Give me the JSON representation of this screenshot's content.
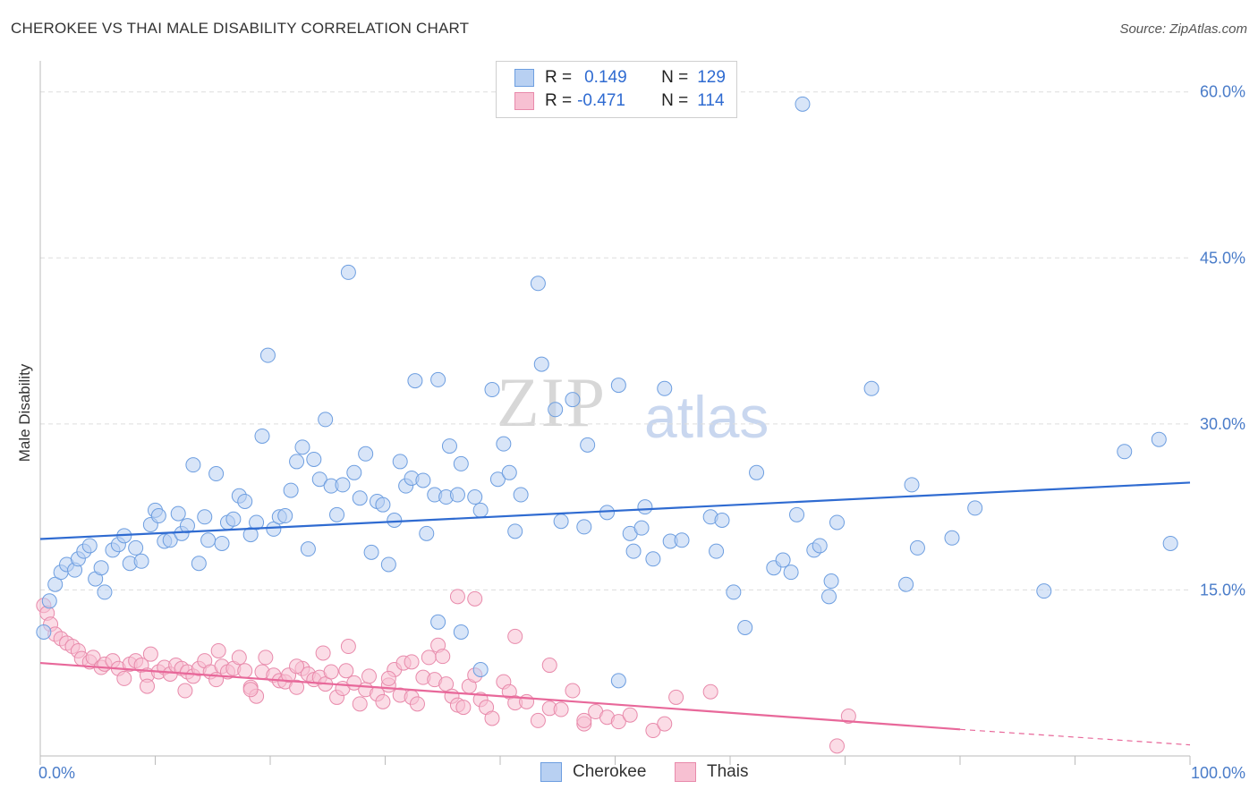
{
  "title": "CHEROKEE VS THAI MALE DISABILITY CORRELATION CHART",
  "source": "Source: ZipAtlas.com",
  "watermark": {
    "zip": "ZIP",
    "atlas": "atlas"
  },
  "legend": {
    "rows": [
      {
        "r_label": "R =",
        "r_value": "0.149",
        "n_label": "N =",
        "n_value": "129"
      },
      {
        "r_label": "R =",
        "r_value": "-0.471",
        "n_label": "N =",
        "n_value": "114"
      }
    ]
  },
  "bottom_legend": [
    "Cherokee",
    "Thais"
  ],
  "colors": {
    "cherokee_fill": "#b8d0f2",
    "cherokee_stroke": "#6d9ee0",
    "cherokee_line": "#2f6bd1",
    "thai_fill": "#f7c0d2",
    "thai_stroke": "#e88aab",
    "thai_line": "#e8689a",
    "grid": "#dddddd",
    "tick_text": "#4a7cc9"
  },
  "chart_data": {
    "type": "scatter",
    "title": "CHEROKEE VS THAI MALE DISABILITY CORRELATION CHART",
    "xlabel": "",
    "ylabel": "Male Disability",
    "xlim": [
      0,
      100
    ],
    "ylim": [
      0,
      60
    ],
    "x_tick_labels": [
      "0.0%",
      "100.0%"
    ],
    "y_ticks": [
      15,
      30,
      45,
      60
    ],
    "y_tick_labels": [
      "15.0%",
      "30.0%",
      "45.0%",
      "60.0%"
    ],
    "grid": true,
    "legend_position": "top-center",
    "series": [
      {
        "name": "Cherokee",
        "R": 0.149,
        "N": 129,
        "trend": {
          "x": [
            0,
            100
          ],
          "y": [
            19.6,
            24.7
          ]
        },
        "points": [
          [
            0.3,
            11.2
          ],
          [
            0.8,
            14
          ],
          [
            1.3,
            15.5
          ],
          [
            1.8,
            16.6
          ],
          [
            2.3,
            17.3
          ],
          [
            3.0,
            16.8
          ],
          [
            3.3,
            17.8
          ],
          [
            3.8,
            18.5
          ],
          [
            4.3,
            19
          ],
          [
            4.8,
            16
          ],
          [
            5.3,
            17
          ],
          [
            5.6,
            14.8
          ],
          [
            6.3,
            18.6
          ],
          [
            6.8,
            19.1
          ],
          [
            7.3,
            19.9
          ],
          [
            7.8,
            17.4
          ],
          [
            8.3,
            18.8
          ],
          [
            8.8,
            17.6
          ],
          [
            9.6,
            20.9
          ],
          [
            10.0,
            22.2
          ],
          [
            10.3,
            21.7
          ],
          [
            10.8,
            19.4
          ],
          [
            11.3,
            19.5
          ],
          [
            12.0,
            21.9
          ],
          [
            12.3,
            20.1
          ],
          [
            12.8,
            20.8
          ],
          [
            13.3,
            26.3
          ],
          [
            13.8,
            17.4
          ],
          [
            14.3,
            21.6
          ],
          [
            14.6,
            19.5
          ],
          [
            15.3,
            25.5
          ],
          [
            15.8,
            19.2
          ],
          [
            16.3,
            21.1
          ],
          [
            16.8,
            21.4
          ],
          [
            17.3,
            23.5
          ],
          [
            17.8,
            23.0
          ],
          [
            18.3,
            20.0
          ],
          [
            18.8,
            21.1
          ],
          [
            19.3,
            28.9
          ],
          [
            19.8,
            36.2
          ],
          [
            20.3,
            20.5
          ],
          [
            20.8,
            21.6
          ],
          [
            21.3,
            21.7
          ],
          [
            21.8,
            24.0
          ],
          [
            22.3,
            26.6
          ],
          [
            22.8,
            27.9
          ],
          [
            23.3,
            18.7
          ],
          [
            23.8,
            26.8
          ],
          [
            24.3,
            25.0
          ],
          [
            24.8,
            30.4
          ],
          [
            25.3,
            24.4
          ],
          [
            25.8,
            21.8
          ],
          [
            26.3,
            24.5
          ],
          [
            26.8,
            43.7
          ],
          [
            27.3,
            25.6
          ],
          [
            27.8,
            23.3
          ],
          [
            28.3,
            27.3
          ],
          [
            28.8,
            18.4
          ],
          [
            29.3,
            23.0
          ],
          [
            29.8,
            22.7
          ],
          [
            30.3,
            17.3
          ],
          [
            30.8,
            21.3
          ],
          [
            31.3,
            26.6
          ],
          [
            31.8,
            24.4
          ],
          [
            32.3,
            25.1
          ],
          [
            32.6,
            33.9
          ],
          [
            33.3,
            24.9
          ],
          [
            33.6,
            20.1
          ],
          [
            34.3,
            23.6
          ],
          [
            34.6,
            34.0
          ],
          [
            35.3,
            23.4
          ],
          [
            35.6,
            28.0
          ],
          [
            36.3,
            23.6
          ],
          [
            36.6,
            26.4
          ],
          [
            37.8,
            23.4
          ],
          [
            38.3,
            22.2
          ],
          [
            39.3,
            33.1
          ],
          [
            39.8,
            25.0
          ],
          [
            40.3,
            28.2
          ],
          [
            40.8,
            25.6
          ],
          [
            41.3,
            20.3
          ],
          [
            41.8,
            23.6
          ],
          [
            43.3,
            42.7
          ],
          [
            43.6,
            35.4
          ],
          [
            44.8,
            31.3
          ],
          [
            45.3,
            21.2
          ],
          [
            46.3,
            32.2
          ],
          [
            47.3,
            20.7
          ],
          [
            47.6,
            28.1
          ],
          [
            49.3,
            22.0
          ],
          [
            50.3,
            33.5
          ],
          [
            51.3,
            20.1
          ],
          [
            51.6,
            18.5
          ],
          [
            52.3,
            20.6
          ],
          [
            52.6,
            22.5
          ],
          [
            53.3,
            17.8
          ],
          [
            54.3,
            33.2
          ],
          [
            54.8,
            19.4
          ],
          [
            55.8,
            19.5
          ],
          [
            58.3,
            21.6
          ],
          [
            58.8,
            18.5
          ],
          [
            59.3,
            21.3
          ],
          [
            60.3,
            14.8
          ],
          [
            61.3,
            11.6
          ],
          [
            62.3,
            25.6
          ],
          [
            63.8,
            17.0
          ],
          [
            64.6,
            17.7
          ],
          [
            65.3,
            16.6
          ],
          [
            65.8,
            21.8
          ],
          [
            66.3,
            58.9
          ],
          [
            67.3,
            18.6
          ],
          [
            67.8,
            19.0
          ],
          [
            68.6,
            14.4
          ],
          [
            68.8,
            15.8
          ],
          [
            69.3,
            21.1
          ],
          [
            72.3,
            33.2
          ],
          [
            75.3,
            15.5
          ],
          [
            75.8,
            24.5
          ],
          [
            76.3,
            18.8
          ],
          [
            79.3,
            19.7
          ],
          [
            81.3,
            22.4
          ],
          [
            87.3,
            14.9
          ],
          [
            94.3,
            27.5
          ],
          [
            97.3,
            28.6
          ],
          [
            98.3,
            19.2
          ],
          [
            34.6,
            12.1
          ],
          [
            36.6,
            11.2
          ],
          [
            38.3,
            7.8
          ],
          [
            50.3,
            6.8
          ]
        ]
      },
      {
        "name": "Thais",
        "R": -0.471,
        "N": 114,
        "trend": {
          "x": [
            0,
            80
          ],
          "y": [
            8.4,
            2.4
          ]
        },
        "trend_dashed": {
          "x": [
            80,
            100
          ],
          "y": [
            2.4,
            1.0
          ]
        },
        "points": [
          [
            0.3,
            13.6
          ],
          [
            0.6,
            12.9
          ],
          [
            0.9,
            11.9
          ],
          [
            1.3,
            11.0
          ],
          [
            1.8,
            10.6
          ],
          [
            2.3,
            10.2
          ],
          [
            2.8,
            9.9
          ],
          [
            3.3,
            9.5
          ],
          [
            3.6,
            8.8
          ],
          [
            4.3,
            8.5
          ],
          [
            4.6,
            8.9
          ],
          [
            5.3,
            8.0
          ],
          [
            5.6,
            8.3
          ],
          [
            6.3,
            8.6
          ],
          [
            6.8,
            7.9
          ],
          [
            7.3,
            7.0
          ],
          [
            7.8,
            8.3
          ],
          [
            8.3,
            8.6
          ],
          [
            8.8,
            8.2
          ],
          [
            9.3,
            7.3
          ],
          [
            9.6,
            9.2
          ],
          [
            10.3,
            7.6
          ],
          [
            10.8,
            8.0
          ],
          [
            11.3,
            7.4
          ],
          [
            11.8,
            8.2
          ],
          [
            12.3,
            7.9
          ],
          [
            12.8,
            7.6
          ],
          [
            13.3,
            7.2
          ],
          [
            13.8,
            7.9
          ],
          [
            14.3,
            8.6
          ],
          [
            14.8,
            7.6
          ],
          [
            15.3,
            6.9
          ],
          [
            15.8,
            8.1
          ],
          [
            16.3,
            7.6
          ],
          [
            16.8,
            7.9
          ],
          [
            17.3,
            8.9
          ],
          [
            17.8,
            7.7
          ],
          [
            18.3,
            6.2
          ],
          [
            18.8,
            5.4
          ],
          [
            19.3,
            7.6
          ],
          [
            19.6,
            8.9
          ],
          [
            20.3,
            7.3
          ],
          [
            20.8,
            6.8
          ],
          [
            21.3,
            6.7
          ],
          [
            21.6,
            7.3
          ],
          [
            22.3,
            6.2
          ],
          [
            22.8,
            7.9
          ],
          [
            23.3,
            7.4
          ],
          [
            23.8,
            6.9
          ],
          [
            24.3,
            7.1
          ],
          [
            24.8,
            6.5
          ],
          [
            25.3,
            7.6
          ],
          [
            25.8,
            5.3
          ],
          [
            26.3,
            6.1
          ],
          [
            26.6,
            7.7
          ],
          [
            27.3,
            6.6
          ],
          [
            27.8,
            4.7
          ],
          [
            28.3,
            6.0
          ],
          [
            28.6,
            7.2
          ],
          [
            29.3,
            5.6
          ],
          [
            29.8,
            4.9
          ],
          [
            30.3,
            6.4
          ],
          [
            30.8,
            7.8
          ],
          [
            31.3,
            5.5
          ],
          [
            31.6,
            8.4
          ],
          [
            32.3,
            5.3
          ],
          [
            32.8,
            4.7
          ],
          [
            33.3,
            7.1
          ],
          [
            33.8,
            8.9
          ],
          [
            34.3,
            6.9
          ],
          [
            34.6,
            10.0
          ],
          [
            35.3,
            6.5
          ],
          [
            35.8,
            5.4
          ],
          [
            36.3,
            4.6
          ],
          [
            36.8,
            4.4
          ],
          [
            37.3,
            6.3
          ],
          [
            37.8,
            7.3
          ],
          [
            38.3,
            5.1
          ],
          [
            38.8,
            4.4
          ],
          [
            39.3,
            3.4
          ],
          [
            40.3,
            6.7
          ],
          [
            40.8,
            5.8
          ],
          [
            41.3,
            4.8
          ],
          [
            42.3,
            4.9
          ],
          [
            43.3,
            3.2
          ],
          [
            44.3,
            4.3
          ],
          [
            45.3,
            4.2
          ],
          [
            46.3,
            5.9
          ],
          [
            47.3,
            2.9
          ],
          [
            48.3,
            4.0
          ],
          [
            49.3,
            3.5
          ],
          [
            50.3,
            3.1
          ],
          [
            51.3,
            3.7
          ],
          [
            53.3,
            2.3
          ],
          [
            54.3,
            2.9
          ],
          [
            55.3,
            5.3
          ],
          [
            58.3,
            5.8
          ],
          [
            69.3,
            0.9
          ],
          [
            70.3,
            3.6
          ],
          [
            36.3,
            14.4
          ],
          [
            37.8,
            14.2
          ],
          [
            26.8,
            9.9
          ],
          [
            24.6,
            9.3
          ],
          [
            41.3,
            10.8
          ],
          [
            44.3,
            8.2
          ],
          [
            35.0,
            9.0
          ],
          [
            22.3,
            8.1
          ],
          [
            15.5,
            9.5
          ],
          [
            32.3,
            8.5
          ],
          [
            30.3,
            7.0
          ],
          [
            12.6,
            5.9
          ],
          [
            18.3,
            6.0
          ],
          [
            9.3,
            6.3
          ],
          [
            47.3,
            3.2
          ]
        ]
      }
    ]
  }
}
